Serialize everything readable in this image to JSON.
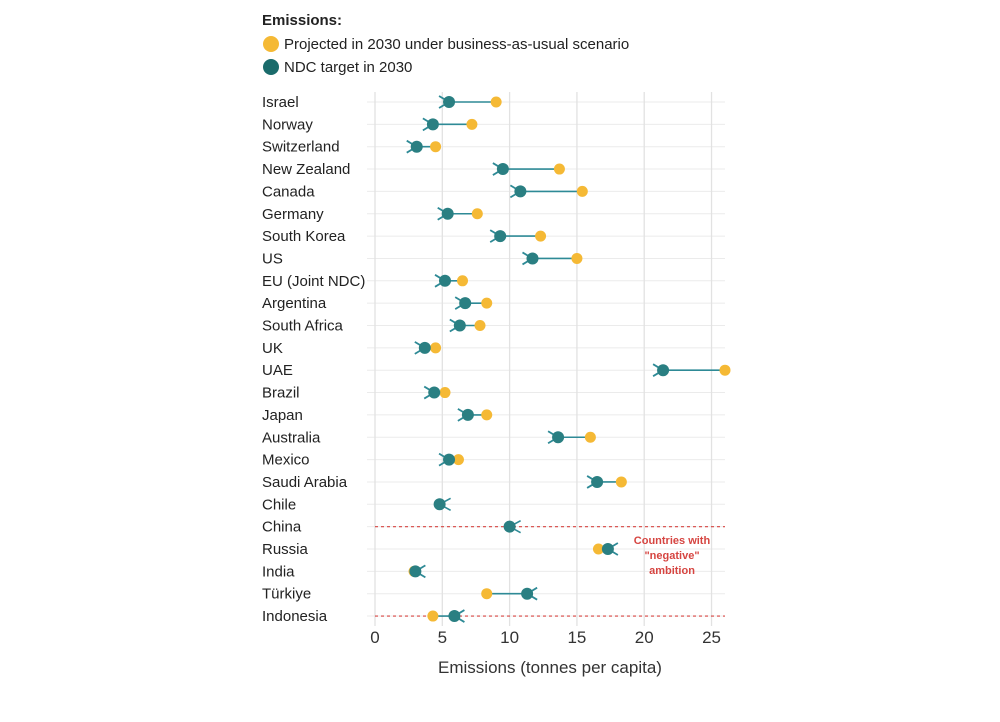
{
  "chart_data": {
    "type": "dumbbell",
    "legend": {
      "title": "Emissions:",
      "entries": [
        {
          "label": "Projected in 2030 under business-as-usual scenario",
          "color": "#f5b935"
        },
        {
          "label": "NDC target in 2030",
          "color": "#1a6b6b"
        }
      ]
    },
    "xlabel": "Emissions (tonnes per capita)",
    "xlim": [
      0,
      26
    ],
    "xticks": [
      0,
      5,
      10,
      15,
      20,
      25
    ],
    "grid": true,
    "colors": {
      "projected": "#f5b935",
      "target": "#1a6b6b",
      "arrow": "#2e8a96",
      "annotation": "#d64541"
    },
    "annotation": {
      "lines": [
        "Countries with",
        "\"negative\"",
        "ambition"
      ]
    },
    "countries": [
      {
        "name": "Israel",
        "projected": 9.0,
        "target": 5.5
      },
      {
        "name": "Norway",
        "projected": 7.2,
        "target": 4.3
      },
      {
        "name": "Switzerland",
        "projected": 4.5,
        "target": 3.1
      },
      {
        "name": "New Zealand",
        "projected": 13.7,
        "target": 9.5
      },
      {
        "name": "Canada",
        "projected": 15.4,
        "target": 10.8
      },
      {
        "name": "Germany",
        "projected": 7.6,
        "target": 5.4
      },
      {
        "name": "South Korea",
        "projected": 12.3,
        "target": 9.3
      },
      {
        "name": "US",
        "projected": 15.0,
        "target": 11.7
      },
      {
        "name": "EU (Joint NDC)",
        "projected": 6.5,
        "target": 5.2
      },
      {
        "name": "Argentina",
        "projected": 8.3,
        "target": 6.7
      },
      {
        "name": "South Africa",
        "projected": 7.8,
        "target": 6.3
      },
      {
        "name": "UK",
        "projected": 4.5,
        "target": 3.7
      },
      {
        "name": "UAE",
        "projected": 26.0,
        "target": 21.4
      },
      {
        "name": "Brazil",
        "projected": 5.2,
        "target": 4.4
      },
      {
        "name": "Japan",
        "projected": 8.3,
        "target": 6.9
      },
      {
        "name": "Australia",
        "projected": 16.0,
        "target": 13.6
      },
      {
        "name": "Mexico",
        "projected": 6.2,
        "target": 5.5
      },
      {
        "name": "Saudi Arabia",
        "projected": 18.3,
        "target": 16.5
      },
      {
        "name": "Chile",
        "projected": 4.8,
        "target": 4.8
      },
      {
        "name": "China",
        "projected": 10.0,
        "target": 10.0
      },
      {
        "name": "Russia",
        "projected": 16.6,
        "target": 17.3
      },
      {
        "name": "India",
        "projected": 2.9,
        "target": 3.0
      },
      {
        "name": "Türkiye",
        "projected": 8.3,
        "target": 11.3
      },
      {
        "name": "Indonesia",
        "projected": 4.3,
        "target": 5.9
      }
    ]
  }
}
